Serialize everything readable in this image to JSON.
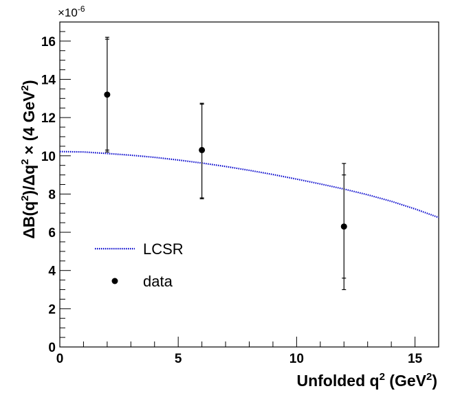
{
  "chart_data": {
    "type": "scatter",
    "xlabel": {
      "prefix": "Unfolded q",
      "sup": "2",
      "suffix": " (GeV",
      "sup2": "2",
      "end": ")"
    },
    "ylabel": {
      "p1": "ΔB(q",
      "s1": "2",
      "p2": ")/Δq",
      "s2": "2",
      "p3": " × (4 GeV",
      "s3": "2",
      "p4": ")"
    },
    "y_multiplier": {
      "base": "×10",
      "exp": "-6"
    },
    "xlim": [
      0,
      16
    ],
    "ylim": [
      0,
      17
    ],
    "x_ticks": [
      0,
      5,
      10,
      15
    ],
    "y_ticks": [
      0,
      2,
      4,
      6,
      8,
      10,
      12,
      14,
      16
    ],
    "series": [
      {
        "name": "data",
        "kind": "points",
        "color": "#000000",
        "points": [
          {
            "x": 2,
            "y": 13.2,
            "err_inner_low": 10.3,
            "err_inner_high": 16.1,
            "err_outer_low": 10.2,
            "err_outer_high": 16.2
          },
          {
            "x": 6,
            "y": 10.3,
            "err_inner_low": 7.8,
            "err_inner_high": 12.7,
            "err_outer_low": 7.75,
            "err_outer_high": 12.75
          },
          {
            "x": 12,
            "y": 6.3,
            "err_inner_low": 3.6,
            "err_inner_high": 9.0,
            "err_outer_low": 3.0,
            "err_outer_high": 9.6
          }
        ]
      },
      {
        "name": "LCSR",
        "kind": "curve",
        "color": "#0000cc",
        "x": [
          0,
          1,
          2,
          3,
          4,
          5,
          6,
          7,
          8,
          9,
          10,
          11,
          12,
          13,
          14,
          15,
          16
        ],
        "y": [
          10.22,
          10.2,
          10.12,
          10.03,
          9.92,
          9.78,
          9.62,
          9.44,
          9.24,
          9.02,
          8.78,
          8.53,
          8.26,
          7.96,
          7.62,
          7.22,
          6.77
        ]
      }
    ],
    "legend": {
      "placement": "lower-left",
      "entries": [
        {
          "label": "LCSR",
          "marker": "dotted-line"
        },
        {
          "label": "data",
          "marker": "dot"
        }
      ]
    },
    "grid": false
  }
}
